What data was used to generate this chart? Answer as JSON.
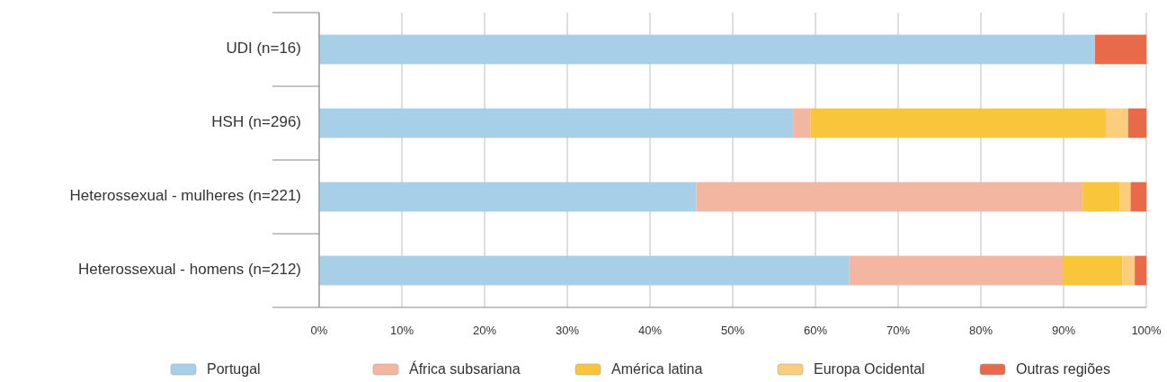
{
  "chart_data": {
    "type": "bar",
    "orientation": "horizontal",
    "stacked": true,
    "categories": [
      "UDI (n=16)",
      "HSH (n=296)",
      "Heterossexual - mulheres (n=221)",
      "Heterossexual - homens (n=212)"
    ],
    "series": [
      {
        "name": "Portugal",
        "color": "#a8cfe8",
        "values": [
          93.8,
          57.3,
          45.6,
          64.1
        ]
      },
      {
        "name": "África subsariana",
        "color": "#f3b6a0",
        "values": [
          0,
          2.1,
          46.7,
          25.8
        ]
      },
      {
        "name": "América latina",
        "color": "#f9c53a",
        "values": [
          0,
          35.7,
          4.5,
          7.2
        ]
      },
      {
        "name": "Europa Ocidental",
        "color": "#fbcd7d",
        "values": [
          0,
          2.7,
          1.3,
          1.5
        ]
      },
      {
        "name": "Outras regiões",
        "color": "#e76b4b",
        "values": [
          6.2,
          2.2,
          1.9,
          1.4
        ]
      }
    ],
    "xlim": [
      0,
      100
    ],
    "xticks": [
      {
        "value": 0,
        "label": "0%"
      },
      {
        "value": 10,
        "label": "10%"
      },
      {
        "value": 20,
        "label": "20%"
      },
      {
        "value": 30,
        "label": "30%"
      },
      {
        "value": 40,
        "label": "40%"
      },
      {
        "value": 50,
        "label": "50%"
      },
      {
        "value": 60,
        "label": "60%"
      },
      {
        "value": 70,
        "label": "70%"
      },
      {
        "value": 80,
        "label": "80%"
      },
      {
        "value": 90,
        "label": "90%"
      },
      {
        "value": 100,
        "label": "100%"
      }
    ],
    "grid": "x",
    "legend": "bottom"
  }
}
